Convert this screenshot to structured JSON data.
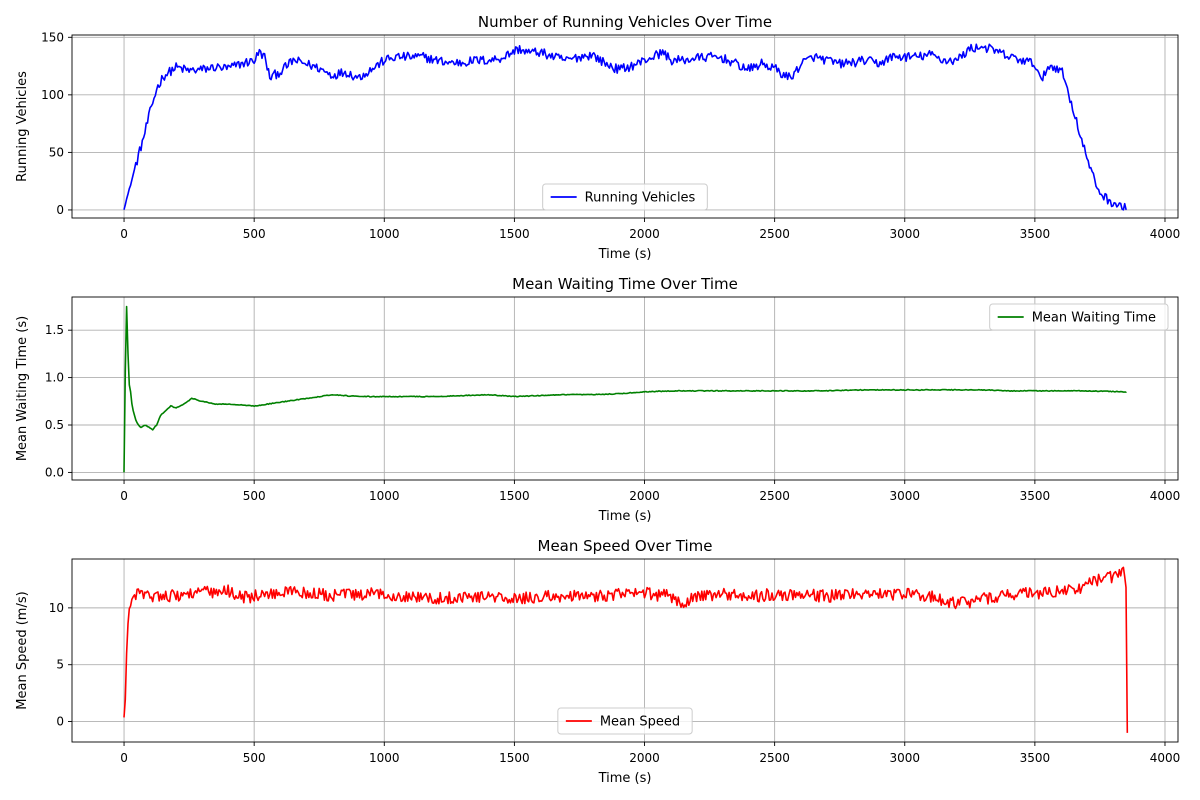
{
  "chart_data": [
    {
      "type": "line",
      "title": "Number of Running Vehicles Over Time",
      "xlabel": "Time (s)",
      "ylabel": "Running Vehicles",
      "xlim": [
        -200,
        4050
      ],
      "ylim": [
        -7,
        152
      ],
      "xticks": [
        0,
        500,
        1000,
        1500,
        2000,
        2500,
        3000,
        3500,
        4000
      ],
      "yticks": [
        0,
        50,
        100,
        150
      ],
      "grid": true,
      "legend": "lower-center",
      "noise": 4,
      "series": [
        {
          "name": "Running Vehicles",
          "color": "#0000ff",
          "x": [
            0,
            25,
            50,
            75,
            100,
            125,
            150,
            175,
            200,
            250,
            300,
            350,
            400,
            450,
            500,
            520,
            540,
            560,
            600,
            650,
            700,
            750,
            800,
            850,
            900,
            950,
            1000,
            1050,
            1100,
            1150,
            1200,
            1250,
            1300,
            1350,
            1400,
            1450,
            1500,
            1520,
            1550,
            1600,
            1650,
            1700,
            1750,
            1800,
            1850,
            1900,
            1950,
            2000,
            2050,
            2075,
            2100,
            2150,
            2200,
            2250,
            2300,
            2350,
            2400,
            2450,
            2500,
            2550,
            2575,
            2600,
            2650,
            2700,
            2750,
            2800,
            2850,
            2900,
            2950,
            3000,
            3050,
            3100,
            3150,
            3200,
            3250,
            3300,
            3350,
            3400,
            3450,
            3500,
            3525,
            3550,
            3600,
            3625,
            3650,
            3675,
            3700,
            3725,
            3750,
            3775,
            3800,
            3850
          ],
          "values": [
            1,
            22,
            43,
            63,
            85,
            105,
            116,
            120,
            124,
            121,
            122,
            124,
            123,
            127,
            130,
            137,
            133,
            115,
            120,
            130,
            127,
            123,
            117,
            120,
            115,
            122,
            130,
            133,
            133,
            133,
            130,
            128,
            128,
            130,
            130,
            132,
            138,
            140,
            137,
            137,
            133,
            130,
            133,
            135,
            127,
            122,
            125,
            130,
            135,
            137,
            130,
            130,
            132,
            133,
            132,
            127,
            122,
            127,
            123,
            115,
            118,
            127,
            133,
            130,
            127,
            128,
            130,
            127,
            133,
            133,
            133,
            135,
            130,
            130,
            140,
            142,
            138,
            133,
            130,
            127,
            111,
            125,
            123,
            105,
            85,
            65,
            45,
            28,
            15,
            10,
            6,
            1
          ]
        }
      ]
    },
    {
      "type": "line",
      "title": "Mean Waiting Time Over Time",
      "xlabel": "Time (s)",
      "ylabel": "Mean Waiting Time (s)",
      "xlim": [
        -200,
        4050
      ],
      "ylim": [
        -0.08,
        1.85
      ],
      "xticks": [
        0,
        500,
        1000,
        1500,
        2000,
        2500,
        3000,
        3500,
        4000
      ],
      "yticks": [
        0.0,
        0.5,
        1.0,
        1.5
      ],
      "grid": true,
      "legend": "top-right",
      "noise": 0.004,
      "series": [
        {
          "name": "Mean Waiting Time",
          "color": "#008000",
          "x": [
            0,
            3,
            6,
            8,
            10,
            12,
            15,
            18,
            22,
            28,
            35,
            45,
            55,
            65,
            80,
            95,
            110,
            125,
            140,
            160,
            180,
            200,
            230,
            260,
            300,
            350,
            400,
            500,
            550,
            600,
            650,
            700,
            750,
            800,
            900,
            1000,
            1100,
            1200,
            1300,
            1400,
            1500,
            1600,
            1700,
            1800,
            1900,
            2000,
            2100,
            2200,
            2300,
            2400,
            2500,
            2600,
            2700,
            2800,
            2900,
            3000,
            3100,
            3200,
            3300,
            3400,
            3500,
            3600,
            3700,
            3850
          ],
          "values": [
            0.0,
            0.6,
            1.3,
            0.9,
            1.75,
            1.1,
            1.25,
            0.9,
            0.95,
            0.75,
            0.65,
            0.55,
            0.5,
            0.47,
            0.5,
            0.48,
            0.45,
            0.5,
            0.6,
            0.65,
            0.7,
            0.68,
            0.72,
            0.78,
            0.75,
            0.72,
            0.72,
            0.7,
            0.72,
            0.74,
            0.76,
            0.78,
            0.8,
            0.82,
            0.8,
            0.8,
            0.8,
            0.8,
            0.81,
            0.82,
            0.8,
            0.81,
            0.82,
            0.82,
            0.83,
            0.85,
            0.86,
            0.86,
            0.86,
            0.86,
            0.86,
            0.86,
            0.86,
            0.87,
            0.87,
            0.87,
            0.87,
            0.87,
            0.87,
            0.86,
            0.86,
            0.86,
            0.86,
            0.85
          ]
        }
      ]
    },
    {
      "type": "line",
      "title": "Mean Speed Over Time",
      "xlabel": "Time (s)",
      "ylabel": "Mean Speed (m/s)",
      "xlim": [
        -200,
        4050
      ],
      "ylim": [
        -1.8,
        14.3
      ],
      "xticks": [
        0,
        500,
        1000,
        1500,
        2000,
        2500,
        3000,
        3500,
        4000
      ],
      "yticks": [
        0,
        5,
        10
      ],
      "grid": true,
      "legend": "lower-center",
      "noise": 0.55,
      "series": [
        {
          "name": "Mean Speed",
          "color": "#ff0000",
          "x": [
            0,
            5,
            10,
            15,
            20,
            30,
            40,
            50,
            60,
            80,
            100,
            150,
            200,
            250,
            300,
            350,
            400,
            450,
            500,
            550,
            600,
            650,
            700,
            750,
            800,
            850,
            900,
            950,
            1000,
            1100,
            1200,
            1300,
            1400,
            1500,
            1600,
            1700,
            1800,
            1900,
            2000,
            2100,
            2150,
            2200,
            2300,
            2400,
            2500,
            2600,
            2700,
            2800,
            2900,
            3000,
            3100,
            3150,
            3200,
            3250,
            3300,
            3400,
            3500,
            3600,
            3650,
            3700,
            3750,
            3800,
            3830,
            3845,
            3850,
            3852,
            3855
          ],
          "values": [
            0.3,
            2.0,
            6.0,
            8.5,
            10.0,
            10.5,
            11.0,
            11.5,
            11.0,
            11.2,
            11.0,
            11.2,
            11.0,
            11.3,
            11.5,
            11.2,
            11.5,
            11.0,
            11.0,
            11.2,
            11.3,
            11.5,
            11.3,
            11.2,
            11.0,
            11.3,
            11.0,
            11.2,
            11.2,
            11.0,
            10.8,
            11.0,
            11.0,
            10.7,
            11.0,
            11.0,
            11.0,
            11.2,
            11.3,
            11.0,
            10.5,
            11.0,
            11.2,
            11.0,
            11.2,
            11.2,
            11.0,
            11.3,
            11.2,
            11.2,
            11.0,
            10.6,
            10.4,
            10.5,
            10.8,
            11.2,
            11.3,
            11.5,
            11.5,
            12.0,
            12.5,
            12.7,
            13.0,
            13.2,
            11.5,
            0.0,
            -1.0
          ]
        }
      ]
    }
  ]
}
